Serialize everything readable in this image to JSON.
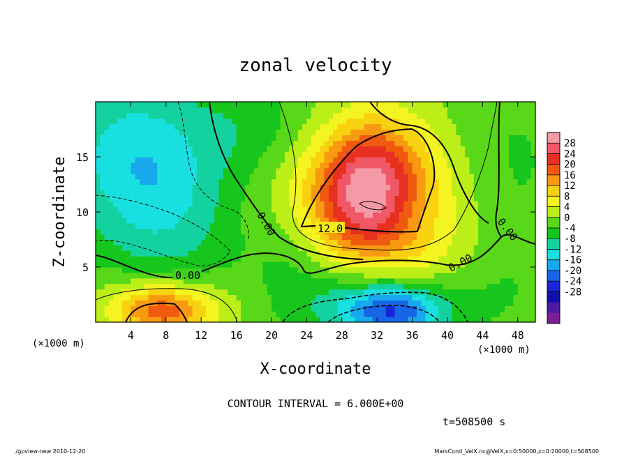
{
  "chart_data": {
    "type": "heatmap",
    "title": "zonal velocity",
    "xlabel": "X-coordinate",
    "ylabel": "Z-coordinate",
    "x_unit_note_left": "(×1000 m)",
    "x_unit_note_right": "(×1000 m)",
    "xlim": [
      0,
      50
    ],
    "ylim": [
      0,
      20
    ],
    "x_ticks": [
      4,
      8,
      12,
      16,
      20,
      24,
      28,
      32,
      36,
      40,
      44,
      48
    ],
    "y_ticks": [
      5,
      10,
      15
    ],
    "colorbar": {
      "ticks": [
        28,
        24,
        20,
        16,
        12,
        8,
        4,
        0,
        -4,
        -8,
        -12,
        -16,
        -20,
        -24,
        -28
      ],
      "colors": [
        "#f49aa6",
        "#f05868",
        "#e83020",
        "#f05a10",
        "#f89a10",
        "#f8d210",
        "#f4f420",
        "#bcee18",
        "#58d818",
        "#16c61c",
        "#14d2a0",
        "#18e0e0",
        "#18a8ee",
        "#1866e8",
        "#1826d8",
        "#1010a8",
        "#4c1ca0",
        "#7c1c96"
      ]
    },
    "contour_interval": 6.0,
    "contour_labels": [
      "0.00",
      "0.00",
      "12.0",
      "0.00",
      "0.00"
    ],
    "field_blobs": [
      {
        "x": 30.5,
        "z": 10.8,
        "value": 17,
        "sx": 4.0,
        "sz": 3.5
      },
      {
        "x": 32,
        "z": 14.5,
        "value": 12,
        "sx": 4.0,
        "sz": 3.5
      },
      {
        "x": 29,
        "z": 12,
        "value": 9,
        "sx": 7.0,
        "sz": 5.0
      },
      {
        "x": 34,
        "z": 6,
        "value": 5,
        "sx": 5.0,
        "sz": 2.5
      },
      {
        "x": 40,
        "z": 10,
        "value": 4,
        "sx": 4.0,
        "sz": 6.0
      },
      {
        "x": 8,
        "z": 1,
        "value": 16,
        "sx": 3.5,
        "sz": 1.6
      },
      {
        "x": 4,
        "z": 1.5,
        "value": 6,
        "sx": 4.0,
        "sz": 2.0
      },
      {
        "x": 13,
        "z": 1.5,
        "value": 4,
        "sx": 5.0,
        "sz": 2.0
      },
      {
        "x": 4,
        "z": 16,
        "value": -10,
        "sx": 6.0,
        "sz": 5.0
      },
      {
        "x": 8,
        "z": 10,
        "value": -8,
        "sx": 6.0,
        "sz": 5.0
      },
      {
        "x": 18,
        "z": 17.5,
        "value": -5,
        "sx": 5.0,
        "sz": 3.0
      },
      {
        "x": 22,
        "z": 6,
        "value": -3,
        "sx": 3.0,
        "sz": 3.0
      },
      {
        "x": 34,
        "z": 1.0,
        "value": -18,
        "sx": 4.0,
        "sz": 1.6
      },
      {
        "x": 30,
        "z": 2,
        "value": -8,
        "sx": 7.0,
        "sz": 2.5
      },
      {
        "x": 46,
        "z": 14,
        "value": -3,
        "sx": 5.0,
        "sz": 6.0
      },
      {
        "x": 45,
        "z": 3,
        "value": -2,
        "sx": 4.0,
        "sz": 3.0
      }
    ],
    "contour_interval_text": "CONTOUR INTERVAL = 6.000E+00",
    "time_text": "t=508500 s"
  },
  "footer": {
    "left": "./gpview-new  2010-12-20",
    "right": "MarsCond_VelX.nc@VelX,x=0:50000,z=0:20000,t=508500"
  }
}
